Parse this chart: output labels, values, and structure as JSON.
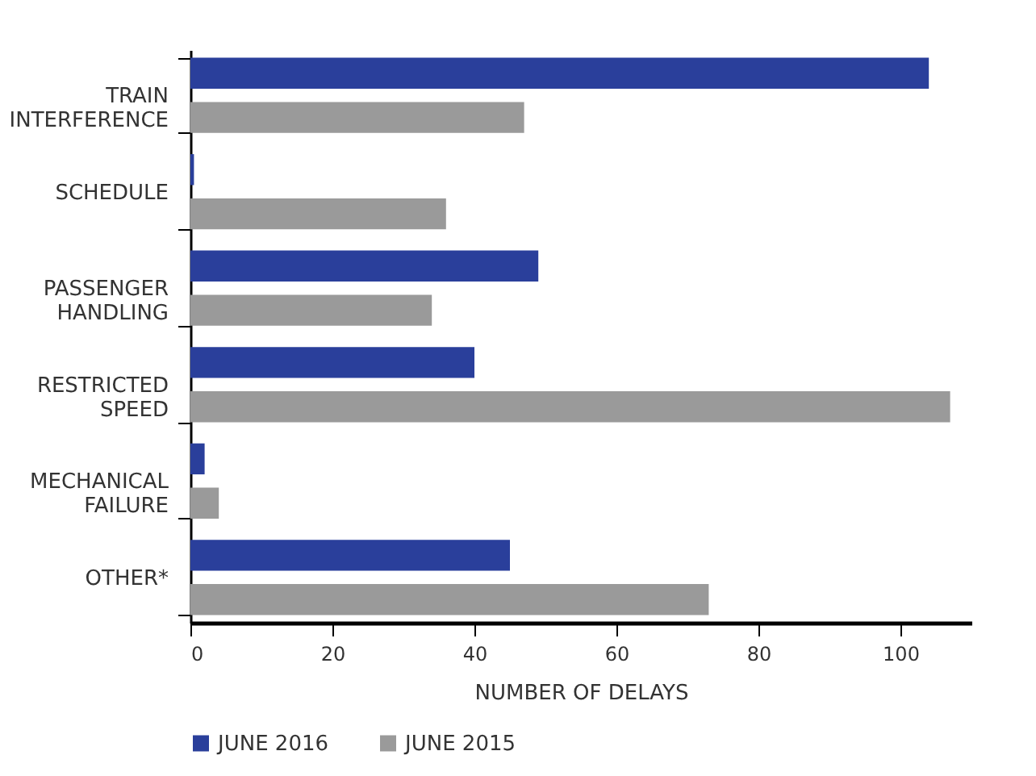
{
  "chart_data": {
    "type": "bar",
    "orientation": "horizontal",
    "xlabel": "NUMBER OF DELAYS",
    "categories": [
      "TRAIN\nINTERFERENCE",
      "SCHEDULE",
      "PASSENGER\nHANDLING",
      "RESTRICTED\nSPEED",
      "MECHANICAL\nFAILURE",
      "OTHER*"
    ],
    "series": [
      {
        "name": "JUNE 2016",
        "color": "#2a3f9b",
        "values": [
          104,
          0.5,
          49,
          40,
          2,
          45
        ]
      },
      {
        "name": "JUNE 2015",
        "color": "#9a9a9a",
        "values": [
          47,
          36,
          34,
          107,
          4,
          73
        ]
      }
    ],
    "xlim": [
      0,
      110
    ],
    "xticks": [
      0,
      20,
      40,
      60,
      80,
      100
    ],
    "grid": false,
    "legend": "bottom"
  }
}
